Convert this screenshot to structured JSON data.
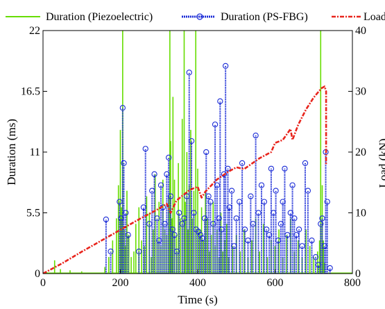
{
  "chart_data": {
    "type": "line",
    "title": "",
    "xlabel": "Time (s)",
    "ylabel_left": "Duration (ms)",
    "ylabel_right": "Load (kN)",
    "xlim": [
      0,
      800
    ],
    "ylim_left": [
      0,
      22
    ],
    "ylim_right": [
      0,
      40
    ],
    "x_ticks": [
      0,
      200,
      400,
      600,
      800
    ],
    "x_tick_labels": [
      "0",
      "200",
      "400",
      "600",
      "800"
    ],
    "y_left_ticks": [
      0,
      5.5,
      11,
      16.5,
      22
    ],
    "y_left_tick_labels": [
      "0",
      "5.5",
      "11",
      "16.5",
      "22"
    ],
    "y_right_ticks": [
      0,
      10,
      20,
      30,
      40
    ],
    "y_right_tick_labels": [
      "0",
      "10",
      "20",
      "30",
      "40"
    ],
    "grid": false,
    "legend_position": "top",
    "colors": {
      "piezoelectric": "#66dd00",
      "psfbg": "#1a2bd6",
      "load": "#e8241c"
    },
    "legend": [
      {
        "label": "Duration (Piezoelectric)",
        "series": "piezoelectric"
      },
      {
        "label": "Duration (PS-FBG)",
        "series": "psfbg"
      },
      {
        "label": "Load",
        "series": "load"
      }
    ],
    "series": [
      {
        "name": "Duration (Piezoelectric)",
        "key": "piezoelectric",
        "axis": "left",
        "style": "impulse",
        "x": [
          30,
          45,
          70,
          100,
          160,
          170,
          180,
          190,
          195,
          200,
          203,
          206,
          210,
          213,
          217,
          222,
          228,
          235,
          240,
          248,
          255,
          262,
          268,
          275,
          280,
          285,
          290,
          295,
          300,
          305,
          310,
          315,
          320,
          325,
          328,
          330,
          333,
          336,
          340,
          345,
          350,
          355,
          360,
          365,
          368,
          372,
          375,
          378,
          382,
          386,
          390,
          395,
          400,
          405,
          410,
          415,
          420,
          425,
          430,
          435,
          440,
          445,
          450,
          455,
          460,
          465,
          470,
          475,
          480,
          490,
          500,
          510,
          520,
          530,
          540,
          550,
          560,
          570,
          580,
          590,
          600,
          610,
          620,
          630,
          640,
          650,
          660,
          670,
          680,
          690,
          700,
          710,
          715,
          718,
          722,
          725,
          728
        ],
        "y": [
          1.2,
          0.4,
          0.3,
          0.2,
          0.6,
          1.5,
          3.0,
          5.0,
          8.0,
          13.0,
          6.0,
          22.0,
          4.0,
          2.5,
          7.5,
          3.5,
          1.5,
          2.0,
          4.5,
          6.0,
          3.0,
          2.5,
          7.0,
          5.5,
          1.5,
          4.0,
          9.0,
          3.0,
          6.5,
          2.5,
          8.5,
          4.0,
          3.5,
          7.0,
          22.0,
          12.0,
          5.0,
          16.0,
          8.5,
          3.5,
          10.0,
          5.0,
          14.0,
          22.0,
          6.5,
          11.0,
          4.0,
          8.0,
          13.0,
          5.0,
          7.5,
          22.0,
          9.5,
          4.0,
          6.0,
          3.0,
          7.5,
          5.0,
          2.0,
          3.5,
          6.5,
          2.5,
          4.0,
          1.5,
          5.5,
          2.0,
          3.0,
          4.5,
          1.5,
          2.5,
          3.5,
          2.0,
          4.0,
          1.5,
          3.0,
          5.0,
          2.0,
          4.5,
          1.5,
          3.0,
          2.5,
          4.0,
          1.5,
          3.5,
          5.0,
          2.0,
          3.0,
          1.5,
          4.0,
          2.5,
          1.5,
          2.0,
          3.0,
          22.0,
          8.0,
          3.0,
          1.0
        ]
      },
      {
        "name": "Duration (PS-FBG)",
        "key": "psfbg",
        "axis": "left",
        "style": "stem",
        "x": [
          163,
          175,
          198,
          202,
          206,
          209,
          214,
          220,
          248,
          260,
          265,
          275,
          282,
          288,
          295,
          300,
          305,
          310,
          315,
          320,
          325,
          330,
          335,
          340,
          346,
          352,
          360,
          365,
          372,
          378,
          384,
          390,
          396,
          402,
          407,
          412,
          418,
          422,
          428,
          433,
          440,
          445,
          450,
          455,
          458,
          462,
          468,
          472,
          478,
          482,
          488,
          494,
          500,
          508,
          515,
          522,
          530,
          537,
          543,
          550,
          557,
          565,
          572,
          578,
          585,
          590,
          596,
          602,
          608,
          615,
          620,
          625,
          632,
          640,
          645,
          650,
          655,
          662,
          670,
          678,
          685,
          695,
          705,
          712,
          718,
          722,
          728,
          731,
          735,
          742
        ],
        "y": [
          4.9,
          2.0,
          6.5,
          5.0,
          15.0,
          10.0,
          5.5,
          3.5,
          2.0,
          6.0,
          11.3,
          4.5,
          7.5,
          9.0,
          5.0,
          3.0,
          8.0,
          6.0,
          4.5,
          9.0,
          10.5,
          7.0,
          4.0,
          3.5,
          2.0,
          5.5,
          4.5,
          5.0,
          7.0,
          18.2,
          12.0,
          5.5,
          4.0,
          3.8,
          3.5,
          3.2,
          5.0,
          11.0,
          7.0,
          6.5,
          4.5,
          13.5,
          8.0,
          5.0,
          15.6,
          4.0,
          9.0,
          18.8,
          9.5,
          6.0,
          7.5,
          2.5,
          5.0,
          6.5,
          10.0,
          4.0,
          3.0,
          7.0,
          4.5,
          12.5,
          5.5,
          8.0,
          6.5,
          4.0,
          3.5,
          9.5,
          5.5,
          7.5,
          3.0,
          4.5,
          6.5,
          9.5,
          3.5,
          5.5,
          8.0,
          5.0,
          3.5,
          4.0,
          2.5,
          10.0,
          7.5,
          3.0,
          1.5,
          0.8,
          4.5,
          5.0,
          2.5,
          11.0,
          6.5,
          0.5
        ]
      },
      {
        "name": "Load",
        "key": "load",
        "axis": "right",
        "style": "dashdot",
        "x": [
          0,
          50,
          100,
          150,
          200,
          250,
          300,
          320,
          330,
          345,
          360,
          380,
          400,
          410,
          420,
          450,
          480,
          500,
          520,
          560,
          590,
          600,
          620,
          640,
          645,
          660,
          680,
          700,
          720,
          728,
          732,
          732
        ],
        "y": [
          0,
          1.7,
          3.6,
          5.4,
          7.2,
          9.0,
          10.7,
          11.5,
          10.0,
          12.0,
          12.8,
          13.8,
          14.3,
          12.5,
          13.5,
          15.5,
          16.8,
          17.5,
          17.2,
          19.0,
          20.0,
          21.5,
          22.0,
          23.8,
          22.0,
          24.5,
          27.0,
          29.0,
          30.5,
          30.8,
          30.0,
          18.0
        ]
      }
    ]
  }
}
